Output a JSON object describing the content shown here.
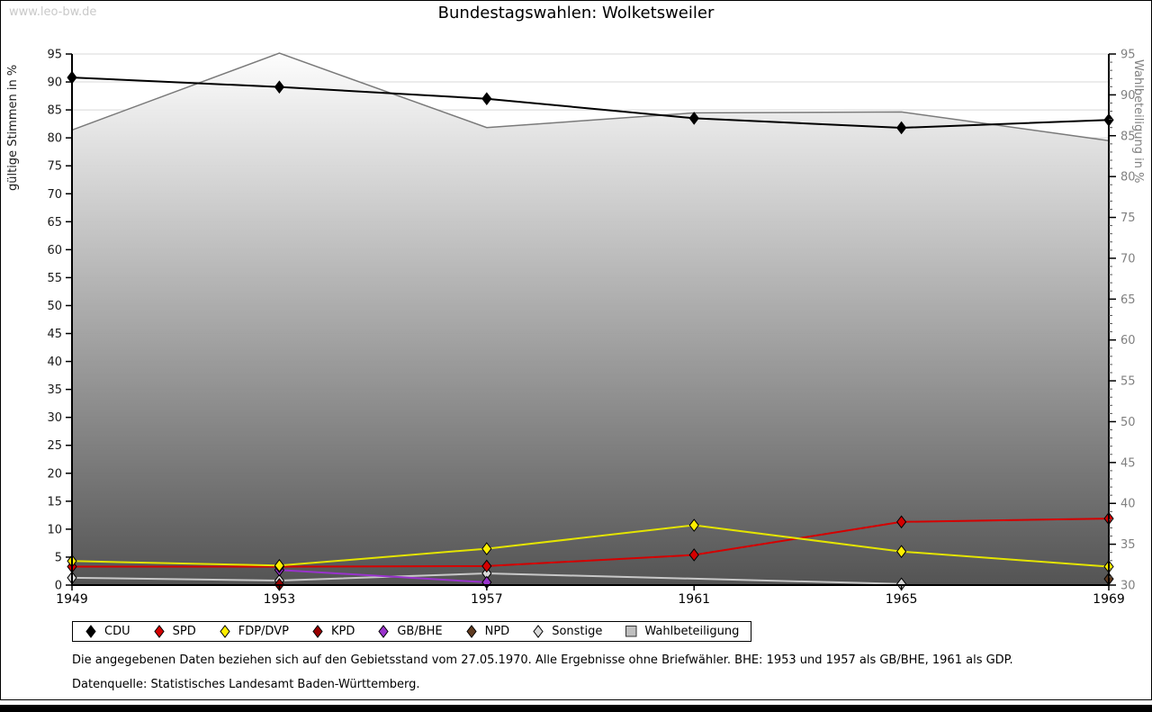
{
  "page": {
    "watermark": "www.leo-bw.de",
    "footnote1": "Die angegebenen Daten beziehen sich auf den Gebietsstand vom 27.05.1970. Alle Ergebnisse ohne Briefwähler. BHE: 1953 und 1957 als GB/BHE, 1961 als GDP.",
    "footnote2": "Datenquelle: Statistisches Landesamt Baden-Württemberg."
  },
  "chart_data": {
    "type": "line",
    "title": "Bundestagswahlen: Wolketsweiler",
    "x": [
      1949,
      1953,
      1957,
      1961,
      1965,
      1969
    ],
    "left_axis": {
      "label": "gültige Stimmen in %",
      "min": 0,
      "max": 95,
      "step": 5
    },
    "right_axis": {
      "label": "Wahlbeteiligung in %",
      "min": 30,
      "max": 95,
      "step": 5,
      "minor_step": 1
    },
    "grid": true,
    "legend_position": "bottom",
    "series": [
      {
        "name": "CDU",
        "axis": "left",
        "color": "#000000",
        "fill": "#000000",
        "marker": "diamond",
        "values": [
          90.8,
          89.1,
          87.0,
          83.5,
          81.8,
          83.2
        ]
      },
      {
        "name": "SPD",
        "axis": "left",
        "color": "#d40000",
        "fill": "#d40000",
        "marker": "diamond",
        "values": [
          3.3,
          3.3,
          3.4,
          5.4,
          11.3,
          11.9
        ]
      },
      {
        "name": "FDP/DVP",
        "axis": "left",
        "color": "#e4e400",
        "fill": "#ffee00",
        "marker": "diamond",
        "values": [
          4.3,
          3.5,
          6.5,
          10.7,
          6.0,
          3.3
        ]
      },
      {
        "name": "KPD",
        "axis": "left",
        "color": "#990000",
        "fill": "#990000",
        "marker": "diamond",
        "values": [
          null,
          0.1,
          null,
          null,
          null,
          null
        ]
      },
      {
        "name": "GB/BHE",
        "axis": "left",
        "color": "#9933cc",
        "fill": "#9933cc",
        "marker": "diamond",
        "values": [
          null,
          2.7,
          0.5,
          null,
          null,
          null
        ]
      },
      {
        "name": "NPD",
        "axis": "left",
        "color": "#5f3b20",
        "fill": "#5f3b20",
        "marker": "diamond",
        "values": [
          null,
          null,
          null,
          null,
          null,
          1.1
        ]
      },
      {
        "name": "Sonstige",
        "axis": "left",
        "color": "#c8c8c8",
        "fill": "#d9d9d9",
        "marker": "diamond",
        "values": [
          1.3,
          0.8,
          2.1,
          null,
          0.2,
          null
        ]
      },
      {
        "name": "Wahlbeteiligung",
        "axis": "right",
        "color": "#7a7a7a",
        "fill": "#bfbfbf",
        "marker": "none",
        "area": true,
        "area_gradient_top": "#fdfdfd",
        "area_gradient_bottom": "#4e4e4e",
        "values": [
          85.7,
          95.1,
          86.0,
          87.8,
          87.9,
          84.4
        ]
      }
    ],
    "colors": {
      "gridline": "#d8d8d8",
      "axis": "#000000",
      "right_axis_text": "#808080",
      "left_axis_text": "#1a1a1a"
    }
  }
}
